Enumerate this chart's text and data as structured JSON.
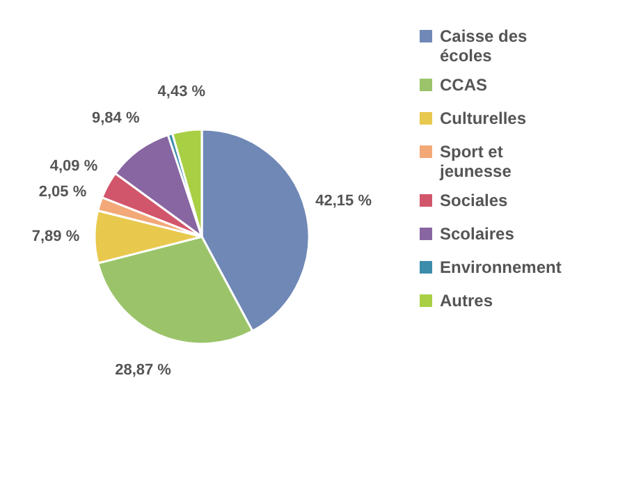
{
  "chart_data": {
    "type": "pie",
    "categories": [
      "Caisse des écoles",
      "CCAS",
      "Culturelles",
      "Sport et jeunesse",
      "Sociales",
      "Scolaires",
      "Environnement",
      "Autres"
    ],
    "values": [
      42.15,
      28.87,
      7.89,
      2.05,
      4.09,
      9.84,
      0.68,
      4.43
    ],
    "colors": [
      "#6f88b6",
      "#9bc46a",
      "#e8c94e",
      "#f2a877",
      "#d2566b",
      "#8766a2",
      "#3b8caa",
      "#a9cf45"
    ],
    "value_labels": [
      "42,15 %",
      "28,87 %",
      "7,89 %",
      "2,05 %",
      "4,09 %",
      "9,84 %",
      null,
      "4,43 %"
    ],
    "legend": "right"
  }
}
